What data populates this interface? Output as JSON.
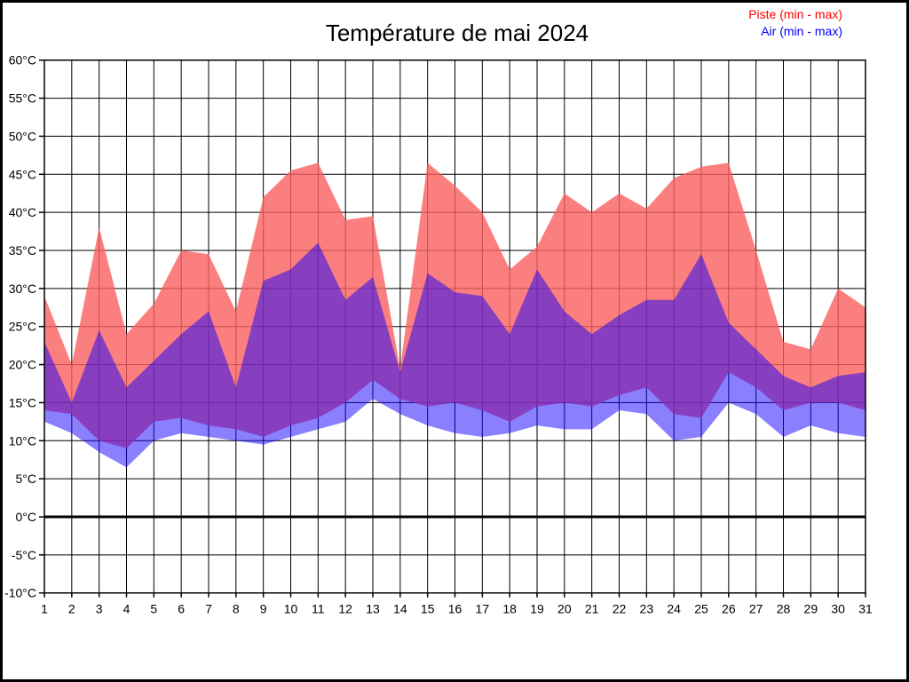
{
  "legend": {
    "piste_label": "Piste (min - max)",
    "air_label": "Air (min - max)",
    "piste_color": "#ff0000",
    "air_color": "#0000ff"
  },
  "chart_data": {
    "type": "area",
    "title": "Température de mai 2024",
    "xlabel": "",
    "ylabel": "",
    "y_unit": "°C",
    "ylim": [
      -10,
      60
    ],
    "ytick_step": 5,
    "x": [
      1,
      2,
      3,
      4,
      5,
      6,
      7,
      8,
      9,
      10,
      11,
      12,
      13,
      14,
      15,
      16,
      17,
      18,
      19,
      20,
      21,
      22,
      23,
      24,
      25,
      26,
      27,
      28,
      29,
      30,
      31
    ],
    "grid": true,
    "zero_line_bold": true,
    "legend_position": "top-right",
    "series": [
      {
        "name": "Piste (min - max)",
        "legend_color": "#ff0000",
        "fill": "rgba(250,95,95,0.8)",
        "max": [
          29,
          20,
          38,
          24,
          28,
          35,
          34.5,
          27,
          42,
          45.5,
          46.5,
          39,
          39.5,
          19.5,
          46.5,
          43.5,
          40,
          32.5,
          35.5,
          42.5,
          40,
          42.5,
          40.5,
          44.5,
          46,
          46.5,
          35,
          23,
          22,
          30,
          27.5
        ],
        "min": [
          14,
          13.5,
          10,
          9,
          12.5,
          13,
          12,
          11.5,
          10.5,
          12,
          13,
          15,
          18,
          15.5,
          14.5,
          15,
          14,
          12.5,
          14.5,
          15,
          14.5,
          16,
          17,
          13.5,
          13,
          19,
          17,
          14,
          15,
          15,
          14
        ]
      },
      {
        "name": "Air (min - max)",
        "legend_color": "#0000ff",
        "fill": "rgba(20,0,255,0.5)",
        "max": [
          23,
          15,
          24.5,
          17,
          20.5,
          24,
          27,
          17,
          31,
          32.5,
          36,
          28.5,
          31.5,
          19,
          32,
          29.5,
          29,
          24,
          32.5,
          27,
          24,
          26.5,
          28.5,
          28.5,
          34.5,
          25.5,
          22,
          18.5,
          17,
          18.5,
          19
        ],
        "min": [
          12.5,
          11,
          8.5,
          6.5,
          10,
          11,
          10.5,
          10,
          9.5,
          10.5,
          11.5,
          12.5,
          15.5,
          13.5,
          12,
          11,
          10.5,
          11,
          12,
          11.5,
          11.5,
          14,
          13.5,
          10,
          10.5,
          15,
          13.5,
          10.5,
          12,
          11,
          10.5
        ]
      }
    ]
  }
}
